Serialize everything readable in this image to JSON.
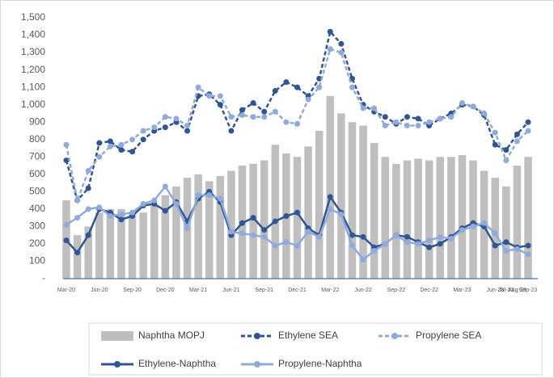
{
  "chart_data": {
    "type": "combo",
    "categories": [
      "Mar-20",
      null,
      null,
      "Jun-20",
      null,
      null,
      "Sep-20",
      null,
      null,
      "Dec-20",
      null,
      null,
      "Mar-21",
      null,
      null,
      "Jun-21",
      null,
      null,
      "Sep-21",
      null,
      null,
      "Dec-21",
      null,
      null,
      "Mar-22",
      null,
      null,
      "Jun-22",
      null,
      null,
      "Sep-22",
      null,
      null,
      "Dec-22",
      null,
      null,
      "Mar-23",
      null,
      null,
      "Jun-23",
      "Jul-23",
      "Aug-23",
      "Sep-23"
    ],
    "ylim": [
      0,
      1500
    ],
    "yticks": [
      {
        "value": 0,
        "label": "-"
      },
      100,
      200,
      300,
      400,
      500,
      600,
      700,
      800,
      900,
      {
        "value": 1000,
        "label": "1,000"
      },
      {
        "value": 1100,
        "label": "1,100"
      },
      {
        "value": 1200,
        "label": "1,200"
      },
      {
        "value": 1300,
        "label": "1,300"
      },
      {
        "value": 1400,
        "label": "1,400"
      },
      {
        "value": 1500,
        "label": "1,500"
      }
    ],
    "series": [
      {
        "name": "Naphtha MOPJ",
        "type": "bar",
        "color": "#bfbfbf",
        "values": [
          450,
          250,
          300,
          380,
          400,
          400,
          370,
          380,
          420,
          480,
          530,
          580,
          600,
          560,
          590,
          620,
          650,
          660,
          680,
          770,
          720,
          700,
          760,
          850,
          1050,
          950,
          900,
          880,
          780,
          700,
          660,
          680,
          690,
          680,
          700,
          700,
          710,
          680,
          620,
          580,
          530,
          650,
          700
        ]
      },
      {
        "name": "Ethylene SEA",
        "type": "line",
        "dashed": true,
        "color": "#2f5597",
        "values": [
          680,
          450,
          520,
          780,
          790,
          740,
          730,
          800,
          850,
          870,
          900,
          850,
          1050,
          1060,
          1000,
          850,
          970,
          1010,
          960,
          1080,
          1130,
          1100,
          1050,
          1150,
          1420,
          1350,
          1150,
          1000,
          960,
          930,
          890,
          930,
          920,
          880,
          920,
          950,
          1000,
          990,
          940,
          770,
          740,
          830,
          900
        ]
      },
      {
        "name": "Propylene SEA",
        "type": "line",
        "dashed": true,
        "color": "#8faadc",
        "values": [
          770,
          450,
          620,
          700,
          760,
          770,
          800,
          850,
          870,
          930,
          920,
          880,
          1100,
          1050,
          1050,
          930,
          940,
          930,
          930,
          960,
          900,
          890,
          1030,
          1100,
          1320,
          1300,
          1100,
          980,
          980,
          880,
          900,
          880,
          880,
          900,
          920,
          930,
          1010,
          990,
          950,
          840,
          680,
          790,
          850
        ]
      },
      {
        "name": "Ethylene-Naphtha",
        "type": "line",
        "dashed": false,
        "color": "#2f5597",
        "values": [
          220,
          150,
          250,
          400,
          380,
          340,
          360,
          420,
          430,
          390,
          440,
          330,
          460,
          500,
          440,
          250,
          320,
          350,
          280,
          330,
          360,
          380,
          290,
          250,
          470,
          380,
          250,
          240,
          180,
          200,
          250,
          240,
          210,
          180,
          200,
          240,
          290,
          320,
          300,
          190,
          210,
          180,
          190
        ]
      },
      {
        "name": "Propylene-Naphtha",
        "type": "line",
        "dashed": false,
        "color": "#8faadc",
        "values": [
          310,
          350,
          400,
          410,
          360,
          370,
          380,
          430,
          450,
          530,
          430,
          290,
          480,
          480,
          460,
          270,
          260,
          250,
          240,
          190,
          210,
          190,
          270,
          240,
          400,
          370,
          190,
          110,
          160,
          200,
          250,
          210,
          200,
          220,
          240,
          230,
          280,
          300,
          320,
          260,
          160,
          170,
          140
        ]
      }
    ]
  }
}
